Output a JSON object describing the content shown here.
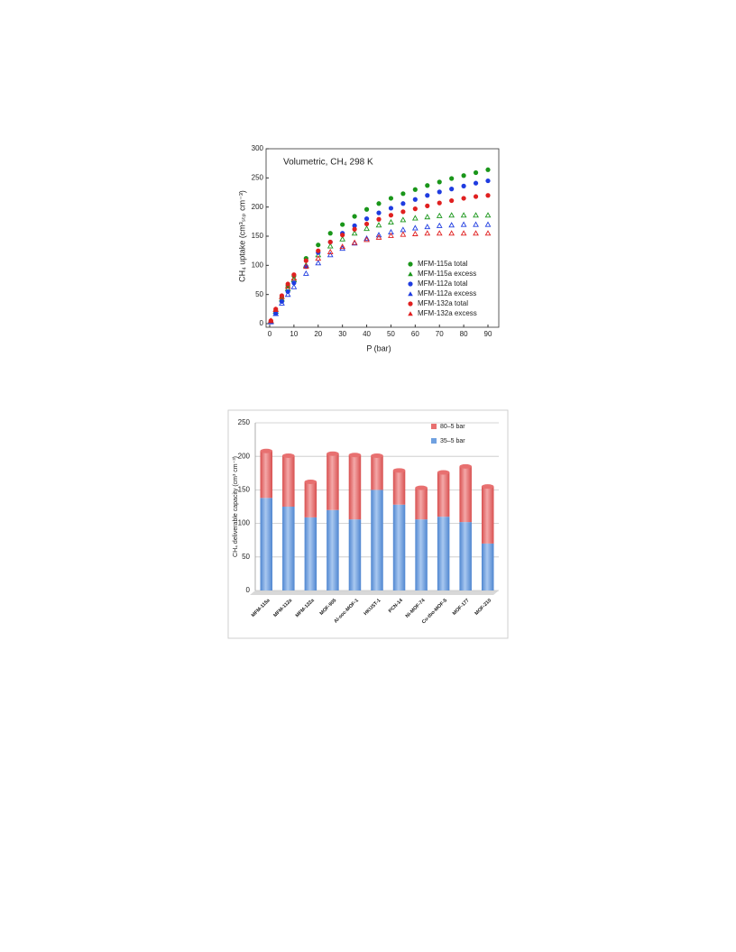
{
  "chart_data": [
    {
      "type": "scatter",
      "title": "Volumetric, CH₄ 298 K",
      "xlabel": "P (bar)",
      "ylabel": "CH₄ uptake (cm³ₛₜₚ cm⁻³)",
      "x": [
        0.5,
        2.5,
        5,
        7.5,
        10,
        15,
        20,
        25,
        30,
        35,
        40,
        45,
        50,
        55,
        60,
        65,
        70,
        75,
        80,
        85,
        90
      ],
      "xlim": [
        0,
        90
      ],
      "xticks": [
        0,
        10,
        20,
        30,
        40,
        50,
        60,
        70,
        80,
        90
      ],
      "ylim": [
        0,
        300
      ],
      "yticks": [
        0,
        50,
        100,
        150,
        200,
        250,
        300
      ],
      "grid": false,
      "legend": "lower right",
      "series": [
        {
          "name": "MFM-115a total",
          "color": "#1a961a",
          "marker": "circle",
          "values": [
            4,
            22,
            45,
            65,
            82,
            112,
            135,
            155,
            170,
            184,
            196,
            206,
            215,
            223,
            230,
            237,
            243,
            249,
            254,
            259,
            264
          ]
        },
        {
          "name": "MFM-115a excess",
          "color": "#1a961a",
          "marker": "triangle",
          "values": [
            4,
            21,
            42,
            60,
            75,
            100,
            118,
            133,
            145,
            155,
            163,
            169,
            174,
            178,
            181,
            183,
            185,
            186,
            186,
            186,
            186
          ]
        },
        {
          "name": "MFM-112a total",
          "color": "#1f3ce0",
          "marker": "circle",
          "values": [
            3,
            18,
            38,
            55,
            70,
            98,
            122,
            140,
            155,
            168,
            180,
            190,
            198,
            206,
            213,
            220,
            226,
            231,
            236,
            241,
            245
          ]
        },
        {
          "name": "MFM-112a excess",
          "color": "#1f3ce0",
          "marker": "triangle",
          "values": [
            3,
            17,
            35,
            50,
            63,
            86,
            104,
            118,
            129,
            138,
            146,
            152,
            157,
            161,
            164,
            166,
            168,
            169,
            170,
            170,
            170
          ]
        },
        {
          "name": "MFM-132a total",
          "color": "#e02020",
          "marker": "circle",
          "values": [
            5,
            25,
            48,
            68,
            84,
            108,
            125,
            140,
            152,
            162,
            171,
            179,
            186,
            192,
            197,
            202,
            207,
            211,
            215,
            218,
            220
          ]
        },
        {
          "name": "MFM-132a excess",
          "color": "#e02020",
          "marker": "triangle",
          "values": [
            5,
            24,
            46,
            64,
            78,
            98,
            112,
            123,
            132,
            139,
            144,
            148,
            151,
            153,
            154,
            155,
            155,
            155,
            155,
            155,
            155
          ]
        }
      ]
    },
    {
      "type": "bar",
      "stacked": true,
      "ylabel": "CH₄ deliverable capacity (cm³ cm⁻³)",
      "categories": [
        "MFM-115a",
        "MFM-112a",
        "MFM-132a",
        "MOF-905",
        "Al-soc-MOF-1",
        "HKUST-1",
        "PCN-14",
        "Ni-MOF-74",
        "Cu-tbo-MOF-5",
        "MOF-177",
        "MOF-210"
      ],
      "ylim": [
        0,
        250
      ],
      "yticks": [
        0,
        50,
        100,
        150,
        200,
        250
      ],
      "grid": true,
      "legend": "upper right",
      "series": [
        {
          "name": "35–5 bar",
          "color": "#6fa0e0",
          "values": [
            138,
            125,
            109,
            120,
            106,
            150,
            128,
            106,
            110,
            102,
            70
          ]
        },
        {
          "name": "80–5 bar",
          "color": "#e87070",
          "values": [
            70,
            76,
            53,
            84,
            96,
            51,
            51,
            47,
            66,
            83,
            85
          ]
        }
      ]
    }
  ]
}
